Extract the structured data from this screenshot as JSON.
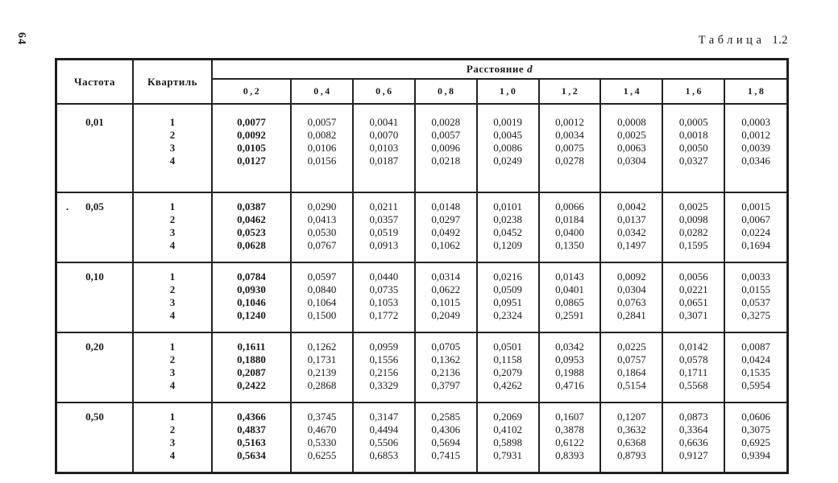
{
  "page": {
    "number": "64",
    "title_word": "Таблица",
    "title_number": "1.2"
  },
  "table": {
    "col_frequency": "Частота",
    "col_quartile": "Квартиль",
    "distance_label": "Расстояние",
    "distance_var": "d",
    "distances": [
      "0,2",
      "0,4",
      "0,6",
      "0,8",
      "1,0",
      "1,2",
      "1,4",
      "1,6",
      "1,8"
    ],
    "groups": [
      {
        "frequency": "0,01",
        "prefix": "",
        "rows": [
          {
            "quartile": "1",
            "values": [
              "0,0077",
              "0,0057",
              "0,0041",
              "0,0028",
              "0,0019",
              "0,0012",
              "0,0008",
              "0,0005",
              "0,0003"
            ]
          },
          {
            "quartile": "2",
            "values": [
              "0,0092",
              "0,0082",
              "0,0070",
              "0,0057",
              "0,0045",
              "0,0034",
              "0,0025",
              "0,0018",
              "0,0012"
            ]
          },
          {
            "quartile": "3",
            "values": [
              "0,0105",
              "0,0106",
              "0,0103",
              "0,0096",
              "0,0086",
              "0,0075",
              "0,0063",
              "0,0050",
              "0,0039"
            ]
          },
          {
            "quartile": "4",
            "values": [
              "0,0127",
              "0,0156",
              "0,0187",
              "0,0218",
              "0,0249",
              "0,0278",
              "0,0304",
              "0,0327",
              "0,0346"
            ]
          }
        ]
      },
      {
        "frequency": "0,05",
        "prefix": ".",
        "rows": [
          {
            "quartile": "1",
            "values": [
              "0,0387",
              "0,0290",
              "0,0211",
              "0,0148",
              "0,0101",
              "0,0066",
              "0,0042",
              "0,0025",
              "0,0015"
            ]
          },
          {
            "quartile": "2",
            "values": [
              "0,0462",
              "0,0413",
              "0,0357",
              "0,0297",
              "0,0238",
              "0,0184",
              "0,0137",
              "0,0098",
              "0,0067"
            ]
          },
          {
            "quartile": "3",
            "values": [
              "0,0523",
              "0,0530",
              "0,0519",
              "0,0492",
              "0,0452",
              "0,0400",
              "0,0342",
              "0,0282",
              "0,0224"
            ]
          },
          {
            "quartile": "4",
            "values": [
              "0,0628",
              "0,0767",
              "0,0913",
              "0,1062",
              "0,1209",
              "0,1350",
              "0,1497",
              "0,1595",
              "0,1694"
            ]
          }
        ]
      },
      {
        "frequency": "0,10",
        "prefix": "",
        "rows": [
          {
            "quartile": "1",
            "values": [
              "0,0784",
              "0,0597",
              "0,0440",
              "0,0314",
              "0,0216",
              "0,0143",
              "0,0092",
              "0,0056",
              "0,0033"
            ]
          },
          {
            "quartile": "2",
            "values": [
              "0,0930",
              "0,0840",
              "0,0735",
              "0,0622",
              "0,0509",
              "0,0401",
              "0,0304",
              "0,0221",
              "0,0155"
            ]
          },
          {
            "quartile": "3",
            "values": [
              "0,1046",
              "0,1064",
              "0,1053",
              "0,1015",
              "0,0951",
              "0,0865",
              "0,0763",
              "0,0651",
              "0,0537"
            ]
          },
          {
            "quartile": "4",
            "values": [
              "0,1240",
              "0,1500",
              "0,1772",
              "0,2049",
              "0,2324",
              "0,2591",
              "0,2841",
              "0,3071",
              "0,3275"
            ]
          }
        ]
      },
      {
        "frequency": "0,20",
        "prefix": "",
        "rows": [
          {
            "quartile": "1",
            "values": [
              "0,1611",
              "0,1262",
              "0,0959",
              "0,0705",
              "0,0501",
              "0,0342",
              "0,0225",
              "0,0142",
              "0,0087"
            ]
          },
          {
            "quartile": "2",
            "values": [
              "0,1880",
              "0,1731",
              "0,1556",
              "0,1362",
              "0,1158",
              "0,0953",
              "0,0757",
              "0,0578",
              "0,0424"
            ]
          },
          {
            "quartile": "3",
            "values": [
              "0,2087",
              "0,2139",
              "0,2156",
              "0,2136",
              "0,2079",
              "0,1988",
              "0,1864",
              "0,1711",
              "0,1535"
            ]
          },
          {
            "quartile": "4",
            "values": [
              "0,2422",
              "0,2868",
              "0,3329",
              "0,3797",
              "0,4262",
              "0,4716",
              "0,5154",
              "0,5568",
              "0,5954"
            ]
          }
        ]
      },
      {
        "frequency": "0,50",
        "prefix": "",
        "rows": [
          {
            "quartile": "1",
            "values": [
              "0,4366",
              "0,3745",
              "0,3147",
              "0,2585",
              "0,2069",
              "0,1607",
              "0,1207",
              "0,0873",
              "0,0606"
            ]
          },
          {
            "quartile": "2",
            "values": [
              "0,4837",
              "0,4670",
              "0,4494",
              "0,4306",
              "0,4102",
              "0,3878",
              "0,3632",
              "0,3364",
              "0,3075"
            ]
          },
          {
            "quartile": "3",
            "values": [
              "0,5163",
              "0,5330",
              "0,5506",
              "0,5694",
              "0,5898",
              "0,6122",
              "0,6368",
              "0,6636",
              "0,6925"
            ]
          },
          {
            "quartile": "4",
            "values": [
              "0,5634",
              "0,6255",
              "0,6853",
              "0,7415",
              "0,7931",
              "0,8393",
              "0,8793",
              "0,9127",
              "0,9394"
            ]
          }
        ]
      }
    ]
  }
}
